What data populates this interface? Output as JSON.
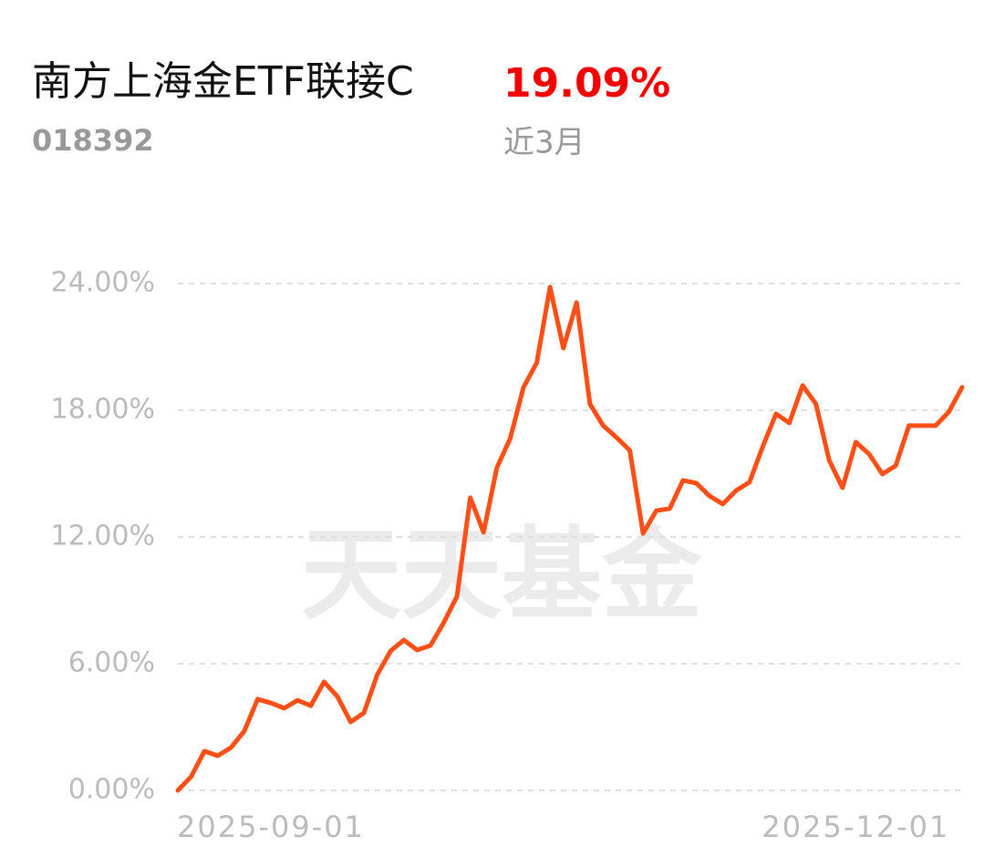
{
  "chart_data": {
    "type": "line",
    "title": "南方上海金ETF联接C",
    "fund_code": "018392",
    "return": "19.09%",
    "period": "近3月",
    "watermark": "天天基金",
    "categories": [
      null,
      null,
      null,
      null,
      null,
      null,
      null,
      "2025-09-01",
      null,
      null,
      null,
      null,
      null,
      null,
      null,
      null,
      null,
      null,
      null,
      null,
      null,
      null,
      null,
      null,
      null,
      null,
      null,
      null,
      null,
      null,
      null,
      null,
      null,
      null,
      null,
      null,
      null,
      null,
      null,
      null,
      null,
      null,
      null,
      null,
      null,
      null,
      null,
      null,
      null,
      null,
      null,
      "2025-12-01",
      null,
      null,
      null,
      null,
      null,
      null,
      null,
      null
    ],
    "series": [
      {
        "color": "#ff4f17",
        "values": [
          0,
          0.65,
          1.86,
          1.64,
          2.03,
          2.81,
          4.32,
          4.14,
          3.89,
          4.27,
          4.01,
          5.14,
          4.45,
          3.24,
          3.67,
          5.48,
          6.6,
          7.12,
          6.65,
          6.86,
          7.94,
          9.19,
          13.86,
          12.22,
          15.28,
          16.66,
          19.08,
          20.25,
          23.83,
          20.94,
          23.1,
          18.3,
          17.27,
          16.71,
          16.1,
          12.17,
          13.25,
          13.34,
          14.68,
          14.55,
          13.94,
          13.56,
          14.2,
          14.59,
          16.28,
          17.83,
          17.4,
          19.17,
          18.3,
          15.63,
          14.33,
          16.49,
          15.93,
          14.98,
          15.37,
          17.27,
          17.27,
          17.27,
          17.92,
          19.09
        ]
      }
    ],
    "ylim": [
      0,
      24
    ],
    "yticks": [
      {
        "value": 0,
        "label": "0.00%"
      },
      {
        "value": 6,
        "label": "6.00%"
      },
      {
        "value": 12,
        "label": "12.00%"
      },
      {
        "value": 18,
        "label": "18.00%"
      },
      {
        "value": 24,
        "label": "24.00%"
      }
    ],
    "grid": true
  }
}
